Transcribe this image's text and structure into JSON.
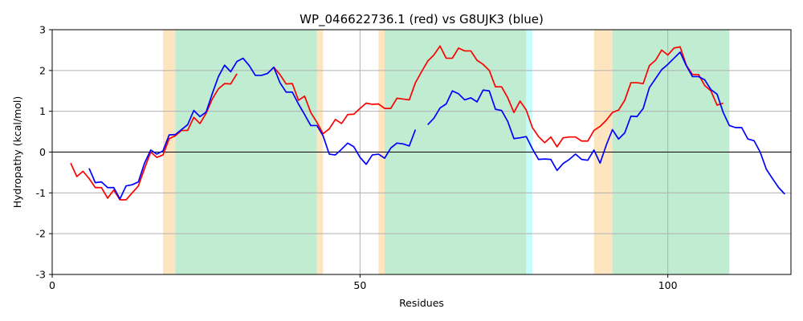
{
  "chart_data": {
    "type": "line",
    "title": "WP_046622736.1 (red) vs G8UJK3 (blue)",
    "xlabel": "Residues",
    "ylabel": "Hydropathy (kcal/mol)",
    "xlim": [
      0,
      120
    ],
    "ylim": [
      -3,
      3
    ],
    "xticks": [
      "0",
      "50",
      "100"
    ],
    "yticks": [
      "-3",
      "-2",
      "-1",
      "0",
      "1",
      "2",
      "3"
    ],
    "grid": true,
    "colors": {
      "red": "#ff0000",
      "blue": "#0000ff",
      "orange_band": "#fde5c0",
      "green_band": "#c0ecd2",
      "cyan_band": "#c8fbfb"
    },
    "bands": [
      {
        "color": "orange_band",
        "x": [
          18,
          20
        ]
      },
      {
        "color": "green_band",
        "x": [
          20,
          43
        ]
      },
      {
        "color": "orange_band",
        "x": [
          43,
          44
        ]
      },
      {
        "color": "orange_band",
        "x": [
          53,
          54
        ]
      },
      {
        "color": "green_band",
        "x": [
          54,
          77
        ]
      },
      {
        "color": "cyan_band",
        "x": [
          77,
          78
        ]
      },
      {
        "color": "orange_band",
        "x": [
          88,
          91
        ]
      },
      {
        "color": "green_band",
        "x": [
          91,
          110
        ]
      }
    ],
    "series": [
      {
        "color": "red",
        "segments": [
          {
            "x_start": 3,
            "values": [
              -0.27,
              -0.6,
              -0.47,
              -0.65,
              -0.87,
              -0.87,
              -1.13,
              -0.93,
              -1.17,
              -1.17,
              -1.0,
              -0.83,
              -0.4,
              0.0,
              -0.13,
              -0.07,
              0.33,
              0.4,
              0.53,
              0.53,
              0.85,
              0.7,
              0.95,
              1.3,
              1.55,
              1.68,
              1.67,
              1.92
            ]
          },
          {
            "x_start": 36,
            "values": [
              2.08,
              1.9,
              1.67,
              1.68,
              1.27,
              1.37,
              0.97,
              0.73,
              0.45,
              0.57,
              0.8,
              0.7,
              0.92,
              0.93,
              1.07,
              1.2,
              1.17,
              1.18,
              1.07,
              1.07,
              1.32,
              1.3,
              1.28,
              1.7,
              1.97,
              2.23,
              2.38,
              2.6,
              2.3,
              2.3,
              2.55,
              2.48,
              2.48,
              2.25,
              2.15,
              2.0,
              1.6,
              1.6,
              1.33,
              0.97,
              1.25,
              1.03,
              0.6,
              0.38,
              0.23,
              0.37,
              0.13,
              0.35,
              0.37,
              0.37,
              0.27,
              0.27,
              0.53,
              0.63,
              0.78,
              0.97,
              1.03,
              1.27,
              1.7,
              1.7,
              1.68,
              2.12,
              2.25,
              2.5,
              2.38,
              2.55,
              2.58,
              2.13,
              1.9,
              1.9,
              1.63,
              1.5,
              1.15,
              1.2
            ]
          }
        ]
      },
      {
        "color": "blue",
        "segments": [
          {
            "x_start": 6,
            "values": [
              -0.4,
              -0.75,
              -0.73,
              -0.87,
              -0.87,
              -1.15,
              -0.83,
              -0.8,
              -0.73,
              -0.27,
              0.05,
              -0.05,
              0.03,
              0.42,
              0.43,
              0.55,
              0.67,
              1.02,
              0.87,
              0.98,
              1.43,
              1.85,
              2.13,
              1.97,
              2.22,
              2.3,
              2.12,
              1.88,
              1.88,
              1.93,
              2.08,
              1.7,
              1.47,
              1.47,
              1.18,
              0.92,
              0.65,
              0.65,
              0.4,
              -0.05,
              -0.07,
              0.07,
              0.22,
              0.13,
              -0.13,
              -0.3,
              -0.07,
              -0.05,
              -0.15,
              0.1,
              0.22,
              0.2,
              0.15,
              0.55
            ]
          },
          {
            "x_start": 61,
            "values": [
              0.67,
              0.83,
              1.08,
              1.18,
              1.5,
              1.43,
              1.28,
              1.33,
              1.23,
              1.52,
              1.5,
              1.05,
              1.02,
              0.75,
              0.33,
              0.35,
              0.38,
              0.08,
              -0.18,
              -0.17,
              -0.18,
              -0.45,
              -0.28,
              -0.18,
              -0.05,
              -0.18,
              -0.2,
              0.05,
              -0.27,
              0.17,
              0.55,
              0.32,
              0.47,
              0.88,
              0.87,
              1.07,
              1.58,
              1.8,
              2.02,
              2.15,
              2.3,
              2.45,
              2.12,
              1.85,
              1.85,
              1.77,
              1.53,
              1.42,
              0.97,
              0.65,
              0.6,
              0.6,
              0.32,
              0.28,
              0.0,
              -0.42,
              -0.65,
              -0.87,
              -1.03
            ]
          }
        ]
      }
    ]
  }
}
